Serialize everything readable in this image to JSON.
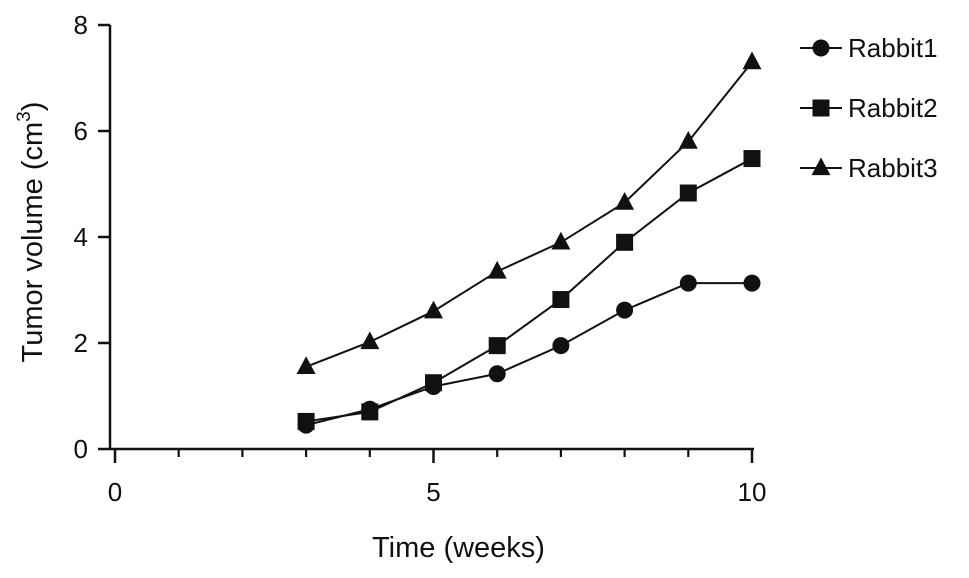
{
  "chart_data": {
    "type": "line",
    "xlabel": "Time (weeks)",
    "ylabel": {
      "prefix": "Tumor volume (cm",
      "superscript": "3",
      "suffix": ")"
    },
    "xlim": [
      0,
      10
    ],
    "ylim": [
      0,
      8
    ],
    "xticks": [
      0,
      5,
      10
    ],
    "xticks_minor": [
      1,
      2,
      3,
      4,
      6,
      7,
      8,
      9
    ],
    "yticks": [
      0,
      2,
      4,
      6,
      8
    ],
    "x": [
      3,
      4,
      5,
      6,
      7,
      8,
      9,
      10
    ],
    "legend_position": "top-right",
    "grid": false,
    "series": [
      {
        "name": "Rabbit1",
        "marker": "circle",
        "values": [
          0.45,
          0.75,
          1.18,
          1.42,
          1.95,
          2.62,
          3.13,
          3.13
        ]
      },
      {
        "name": "Rabbit2",
        "marker": "square",
        "values": [
          0.52,
          0.7,
          1.25,
          1.95,
          2.82,
          3.9,
          4.83,
          5.48
        ]
      },
      {
        "name": "Rabbit3",
        "marker": "triangle",
        "values": [
          1.55,
          2.02,
          2.6,
          3.35,
          3.9,
          4.65,
          5.8,
          7.3
        ]
      }
    ],
    "color": "#111111"
  }
}
